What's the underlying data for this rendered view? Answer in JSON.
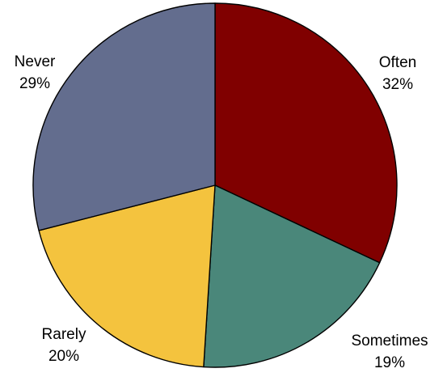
{
  "chart_data": {
    "type": "pie",
    "slices": [
      {
        "label": "Often",
        "percent_label": "32%",
        "value": 32,
        "color": "#800000"
      },
      {
        "label": "Sometimes",
        "percent_label": "19%",
        "value": 19,
        "color": "#4a877a"
      },
      {
        "label": "Rarely",
        "percent_label": "20%",
        "value": 20,
        "color": "#f4c33e"
      },
      {
        "label": "Never",
        "percent_label": "29%",
        "value": 29,
        "color": "#636d8e"
      }
    ],
    "start": "top",
    "direction": "clockwise",
    "legend": "none",
    "data_labels": "outside"
  }
}
